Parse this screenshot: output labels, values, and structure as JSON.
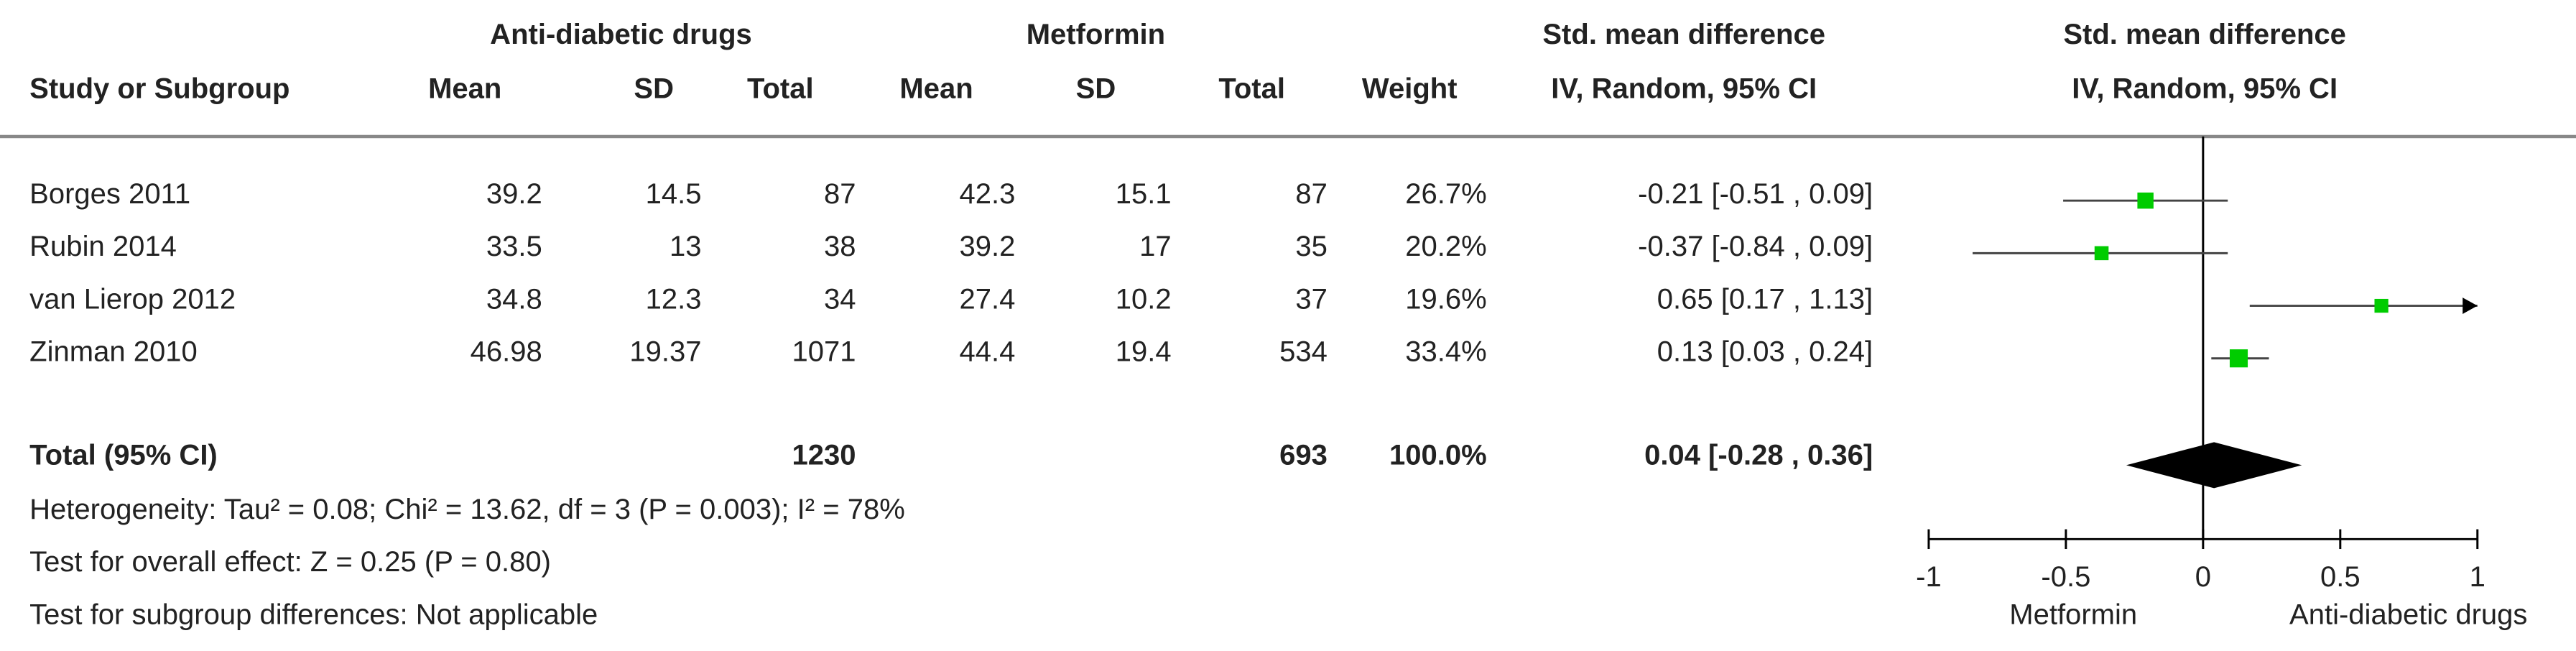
{
  "chart_data": {
    "type": "forest",
    "group_headers": {
      "experimental": "Anti-diabetic drugs",
      "control": "Metformin",
      "effect": "Std. mean difference",
      "plot": "Std. mean difference"
    },
    "column_headers": [
      "Study or Subgroup",
      "Mean",
      "SD",
      "Total",
      "Mean",
      "SD",
      "Total",
      "Weight",
      "IV, Random, 95% CI",
      "IV, Random, 95% CI"
    ],
    "studies": [
      {
        "name": "Borges 2011",
        "mean1": 39.2,
        "sd1": 14.5,
        "n1": 87,
        "mean2": 42.3,
        "sd2": 15.1,
        "n2": 87,
        "weight": 26.7,
        "weight_label": "26.7%",
        "smd": -0.21,
        "ci": [
          -0.51,
          0.09
        ],
        "ci_label": "-0.21 [-0.51 , 0.09]"
      },
      {
        "name": "Rubin 2014",
        "mean1": 33.5,
        "sd1": 13,
        "n1": 38,
        "mean2": 39.2,
        "sd2": 17,
        "n2": 35,
        "weight": 20.2,
        "weight_label": "20.2%",
        "smd": -0.37,
        "ci": [
          -0.84,
          0.09
        ],
        "ci_label": "-0.37 [-0.84 , 0.09]"
      },
      {
        "name": "van Lierop 2012",
        "mean1": 34.8,
        "sd1": 12.3,
        "n1": 34,
        "mean2": 27.4,
        "sd2": 10.2,
        "n2": 37,
        "weight": 19.6,
        "weight_label": "19.6%",
        "smd": 0.65,
        "ci": [
          0.17,
          1.13
        ],
        "ci_label": "0.65 [0.17 , 1.13]"
      },
      {
        "name": "Zinman 2010",
        "mean1": 46.98,
        "sd1": 19.37,
        "n1": 1071,
        "mean2": 44.4,
        "sd2": 19.4,
        "n2": 534,
        "weight": 33.4,
        "weight_label": "33.4%",
        "smd": 0.13,
        "ci": [
          0.03,
          0.24
        ],
        "ci_label": "0.13 [0.03 , 0.24]"
      }
    ],
    "total": {
      "label": "Total (95% CI)",
      "n1": 1230,
      "n2": 693,
      "weight_label": "100.0%",
      "smd": 0.04,
      "ci": [
        -0.28,
        0.36
      ],
      "ci_label": "0.04 [-0.28 , 0.36]"
    },
    "heterogeneity": "Heterogeneity: Tau² = 0.08; Chi² = 13.62, df = 3 (P = 0.003); I² = 78%",
    "overall_effect": "Test for overall effect: Z = 0.25 (P = 0.80)",
    "subgroup_test": "Test for subgroup differences: Not applicable",
    "xlim": [
      -1,
      1
    ],
    "xticks": [
      -1,
      -0.5,
      0,
      0.5,
      1
    ],
    "x_axis_labels": {
      "left": "Metformin",
      "right": "Anti-diabetic drugs"
    },
    "marker_color": "#00cc00"
  }
}
